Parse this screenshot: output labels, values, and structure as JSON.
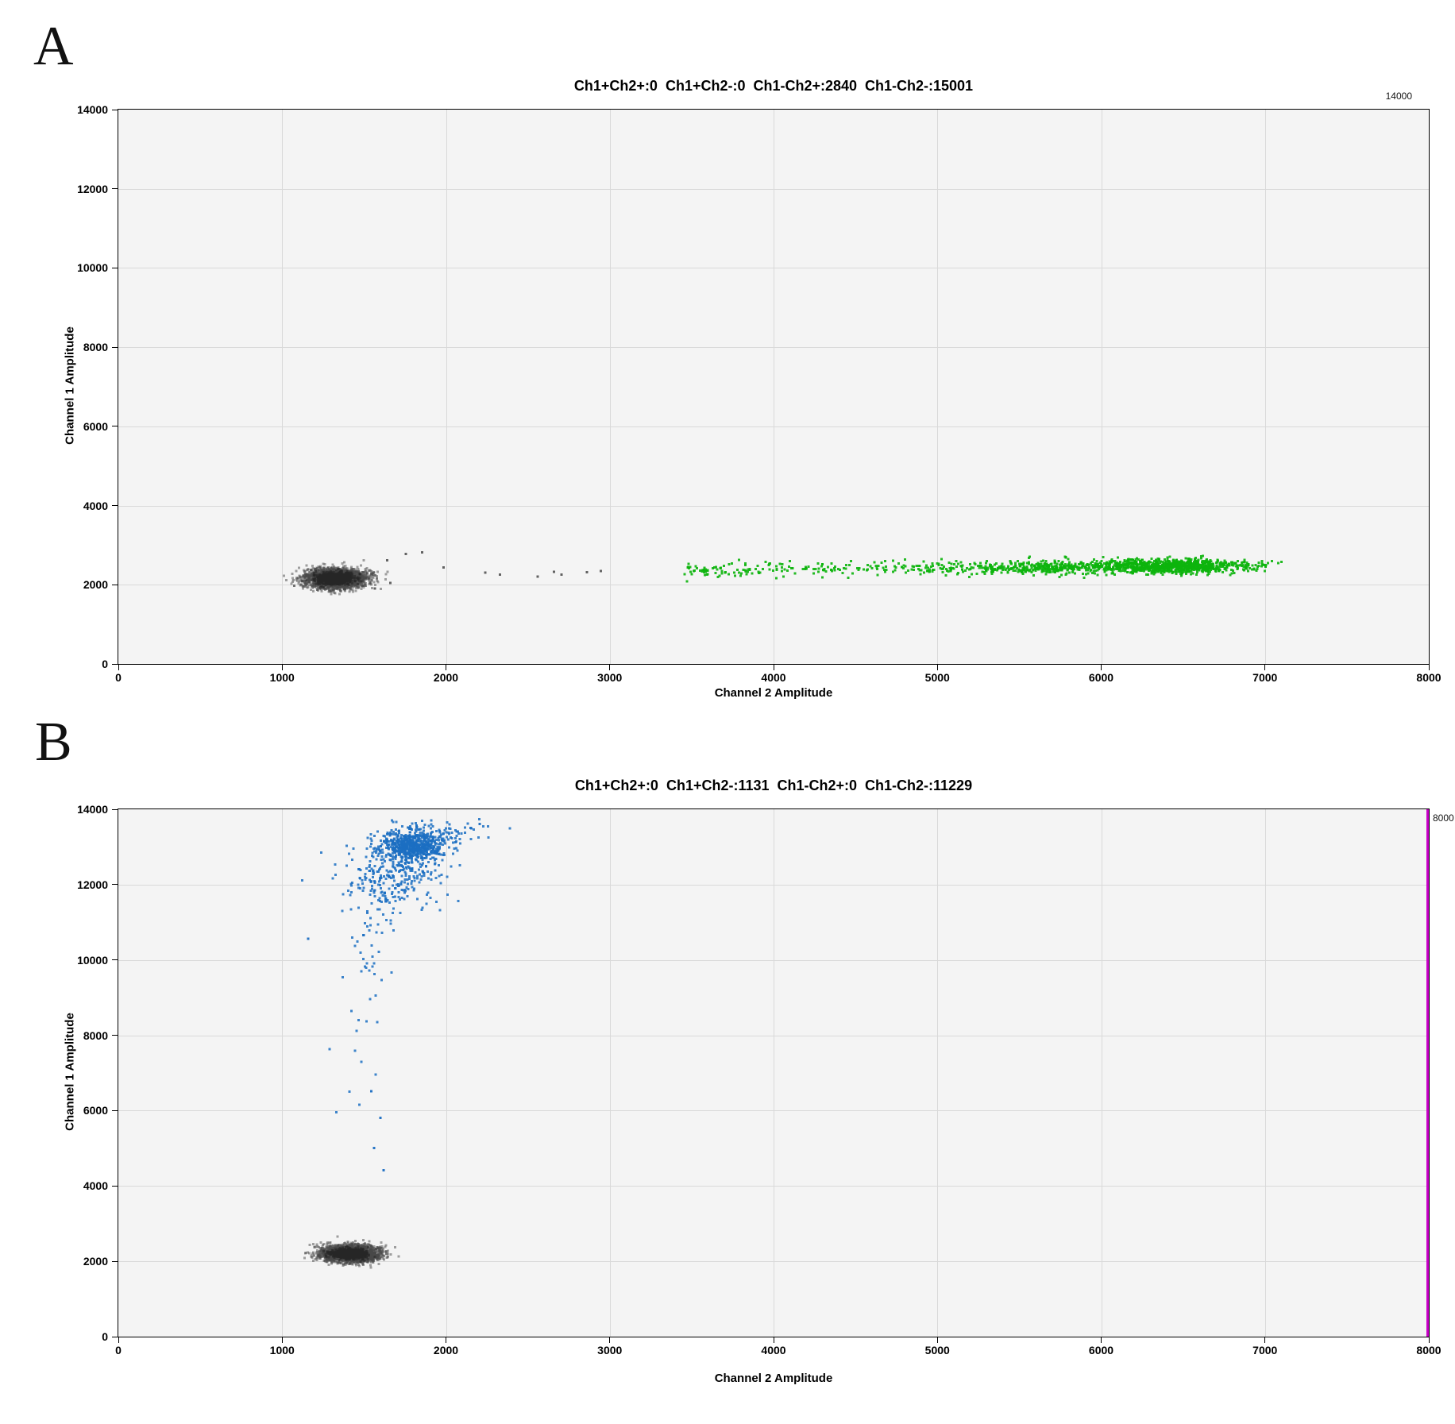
{
  "figure": {
    "background": "#ffffff",
    "panel_a_label": "A",
    "panel_b_label": "B"
  },
  "chart_data": [
    {
      "type": "scatter",
      "panel_label": "A",
      "title": "Ch1+Ch2+:0  Ch1+Ch2-:0  Ch1-Ch2+:2840  Ch1-Ch2-:15001",
      "counts": {
        "Ch1+Ch2+": 0,
        "Ch1+Ch2-": 0,
        "Ch1-Ch2+": 2840,
        "Ch1-Ch2-": 15001
      },
      "xlabel": "Channel 2 Amplitude",
      "ylabel": "Channel 1 Amplitude",
      "xlim": [
        0,
        8000
      ],
      "ylim": [
        0,
        14000
      ],
      "xticks": [
        0,
        1000,
        2000,
        3000,
        4000,
        5000,
        6000,
        7000,
        8000
      ],
      "yticks": [
        0,
        2000,
        4000,
        6000,
        8000,
        10000,
        12000,
        14000
      ],
      "grid": true,
      "corner_label": "14000",
      "plot_bg": "#f4f4f4",
      "grid_color": "#d9d9d9",
      "clusters": [
        {
          "name": "negative-droplets",
          "color": "#474747",
          "opacity": 0.5,
          "size": 3,
          "n": 2600,
          "seed": 101,
          "parts": [
            {
              "w": 1,
              "x": {
                "g": [
                  1330,
                  92
                ]
              },
              "y": {
                "g": [
                  2160,
                  122
                ]
              }
            }
          ]
        },
        {
          "name": "negative-droplets-core",
          "color": "#262626",
          "opacity": 0.6,
          "size": 3,
          "n": 1000,
          "seed": 102,
          "parts": [
            {
              "w": 1,
              "x": {
                "g": [
                  1325,
                  55
                ]
              },
              "y": {
                "g": [
                  2155,
                  70
                ]
              }
            }
          ]
        },
        {
          "name": "negative-stragglers",
          "color": "#5a5a5a",
          "opacity": 0.95,
          "size": 3,
          "points": [
            [
              1660,
              2050
            ],
            [
              1755,
              2780
            ],
            [
              1855,
              2820
            ],
            [
              1985,
              2440
            ],
            [
              2240,
              2310
            ],
            [
              2330,
              2255
            ],
            [
              2560,
              2205
            ],
            [
              2660,
              2330
            ],
            [
              2705,
              2260
            ],
            [
              2860,
              2320
            ],
            [
              2945,
              2350
            ],
            [
              1565,
              1905
            ],
            [
              1640,
              2620
            ]
          ]
        },
        {
          "name": "ch2-positive-droplets",
          "color": "#0cb40c",
          "opacity": 0.9,
          "size": 3,
          "n": 1500,
          "seed": 103,
          "clip": {
            "x": [
              3400,
              7165
            ],
            "y": [
              1800,
              3100
            ]
          },
          "parts": [
            {
              "w": 0.54,
              "x": {
                "g": [
                  6430,
                  255
                ]
              },
              "y": {
                "lin": [
                  2250,
                  0.033,
                  88
                ]
              }
            },
            {
              "w": 0.26,
              "x": {
                "g": [
                  5760,
                  420
                ]
              },
              "y": {
                "lin": [
                  2250,
                  0.033,
                  92
                ]
              }
            },
            {
              "w": 0.2,
              "x": {
                "u": [
                  3450,
                  5850
                ]
              },
              "y": {
                "lin": [
                  2250,
                  0.033,
                  92
                ]
              }
            }
          ]
        }
      ]
    },
    {
      "type": "scatter",
      "panel_label": "B",
      "title": "Ch1+Ch2+:0  Ch1+Ch2-:1131  Ch1-Ch2+:0  Ch1-Ch2-:11229",
      "counts": {
        "Ch1+Ch2+": 0,
        "Ch1+Ch2-": 1131,
        "Ch1-Ch2+": 0,
        "Ch1-Ch2-": 11229
      },
      "xlabel": "Channel 2 Amplitude",
      "ylabel": "Channel 1 Amplitude",
      "xlim": [
        0,
        8000
      ],
      "ylim": [
        0,
        14000
      ],
      "xticks": [
        0,
        1000,
        2000,
        3000,
        4000,
        5000,
        6000,
        7000,
        8000
      ],
      "yticks": [
        0,
        2000,
        4000,
        6000,
        8000,
        10000,
        12000,
        14000
      ],
      "grid": true,
      "corner_label": "8000",
      "plot_bg": "#f4f4f4",
      "grid_color": "#d9d9d9",
      "right_edge_line": "#c800c8",
      "clusters": [
        {
          "name": "ch1-positive-droplets",
          "color": "#1b6ec2",
          "opacity": 0.85,
          "size": 3,
          "n": 1050,
          "seed": 201,
          "clip": {
            "x": [
              1000,
              2400
            ],
            "y": [
              4300,
              13750
            ]
          },
          "parts": [
            {
              "w": 0.56,
              "x": {
                "g": [
                  1795,
                  95
                ]
              },
              "y": {
                "g": [
                  13020,
                  185
                ]
              }
            },
            {
              "w": 0.1,
              "x": {
                "g": [
                  1935,
                  150
                ]
              },
              "y": {
                "g": [
                  13340,
                  160
                ]
              }
            },
            {
              "w": 0.26,
              "x": {
                "g": [
                  1685,
                  150
                ]
              },
              "y": {
                "g": [
                  12280,
                  430
                ]
              }
            },
            {
              "w": 0.08,
              "x": {
                "linY": [
                  1290,
                  0.0235,
                  78
                ]
              },
              "y": {
                "pow": [
                  4400,
                  12500,
                  0.3
                ]
              }
            }
          ]
        },
        {
          "name": "ch1-positive-stragglers",
          "color": "#1b6ec2",
          "opacity": 0.95,
          "size": 3,
          "points": [
            [
              1160,
              10560
            ],
            [
              2205,
              13610
            ],
            [
              2150,
              13500
            ],
            [
              1545,
              6520
            ],
            [
              1600,
              5810
            ],
            [
              1560,
              5010
            ],
            [
              1620,
              4420
            ]
          ]
        },
        {
          "name": "negative-droplets",
          "color": "#474747",
          "opacity": 0.5,
          "size": 3,
          "n": 2500,
          "seed": 202,
          "parts": [
            {
              "w": 1,
              "x": {
                "g": [
                  1415,
                  88
                ]
              },
              "y": {
                "g": [
                  2200,
                  108
                ]
              }
            }
          ]
        },
        {
          "name": "negative-droplets-core",
          "color": "#262626",
          "opacity": 0.6,
          "size": 3,
          "n": 950,
          "seed": 203,
          "parts": [
            {
              "w": 1,
              "x": {
                "g": [
                  1410,
                  52
                ]
              },
              "y": {
                "g": [
                  2200,
                  62
                ]
              }
            }
          ]
        }
      ]
    }
  ]
}
